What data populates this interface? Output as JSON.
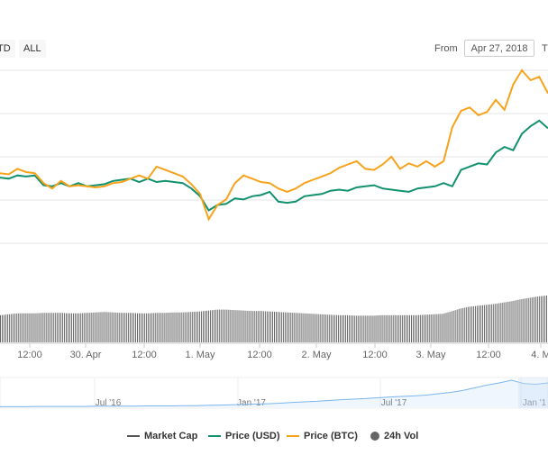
{
  "toolbar": {
    "range_buttons": [
      "TD",
      "ALL"
    ],
    "from_label": "From",
    "from_date": "Apr 27, 2018",
    "to_label": "T"
  },
  "colors": {
    "usd": "#12916f",
    "btc": "#f7a21b",
    "market_cap": "#555555",
    "volume": "#666666",
    "navigator": "#7cb5ec",
    "grid": "#e6e6e6"
  },
  "chart_data": {
    "type": "line",
    "x_ticks": [
      "12:00",
      "30. Apr",
      "12:00",
      "1. May",
      "12:00",
      "2. May",
      "12:00",
      "3. May",
      "12:00",
      "4. M"
    ],
    "series": [
      {
        "name": "Price (USD)",
        "values": [
          0.5,
          0.49,
          0.51,
          0.5,
          0.51,
          0.46,
          0.46,
          0.47,
          0.46,
          0.47,
          0.46,
          0.46,
          0.47,
          0.48,
          0.49,
          0.49,
          0.48,
          0.49,
          0.48,
          0.48,
          0.48,
          0.47,
          0.45,
          0.41,
          0.35,
          0.37,
          0.38,
          0.4,
          0.4,
          0.41,
          0.42,
          0.43,
          0.39,
          0.38,
          0.39,
          0.41,
          0.42,
          0.42,
          0.44,
          0.44,
          0.44,
          0.45,
          0.46,
          0.46,
          0.45,
          0.44,
          0.44,
          0.43,
          0.45,
          0.45,
          0.46,
          0.47,
          0.46,
          0.53,
          0.55,
          0.56,
          0.56,
          0.61,
          0.64,
          0.62,
          0.7,
          0.73,
          0.76,
          0.72
        ]
      },
      {
        "name": "Price (BTC)",
        "values": [
          0.52,
          0.51,
          0.54,
          0.52,
          0.52,
          0.47,
          0.45,
          0.48,
          0.46,
          0.46,
          0.46,
          0.45,
          0.46,
          0.47,
          0.48,
          0.49,
          0.51,
          0.49,
          0.55,
          0.53,
          0.52,
          0.5,
          0.47,
          0.42,
          0.31,
          0.37,
          0.4,
          0.47,
          0.51,
          0.49,
          0.48,
          0.47,
          0.45,
          0.43,
          0.45,
          0.47,
          0.49,
          0.5,
          0.52,
          0.54,
          0.56,
          0.57,
          0.54,
          0.53,
          0.56,
          0.59,
          0.54,
          0.56,
          0.55,
          0.57,
          0.55,
          0.57,
          0.73,
          0.8,
          0.82,
          0.78,
          0.8,
          0.85,
          0.81,
          0.92,
          0.99,
          0.94,
          0.96,
          0.88
        ]
      }
    ],
    "volume": [
      0.58,
      0.6,
      0.62,
      0.62,
      0.62,
      0.63,
      0.63,
      0.63,
      0.62,
      0.62,
      0.63,
      0.64,
      0.65,
      0.64,
      0.63,
      0.63,
      0.62,
      0.62,
      0.63,
      0.63,
      0.64,
      0.64,
      0.65,
      0.66,
      0.68,
      0.7,
      0.7,
      0.69,
      0.68,
      0.67,
      0.67,
      0.66,
      0.65,
      0.64,
      0.63,
      0.62,
      0.61,
      0.6,
      0.59,
      0.58,
      0.58,
      0.57,
      0.57,
      0.57,
      0.58,
      0.58,
      0.58,
      0.58,
      0.58,
      0.59,
      0.6,
      0.61,
      0.66,
      0.72,
      0.76,
      0.78,
      0.8,
      0.82,
      0.85,
      0.88,
      0.92,
      0.95,
      0.98,
      1.0
    ],
    "navigator_ticks": [
      "Jul '16",
      "Jan '17",
      "Jul '17",
      "Jan '1"
    ],
    "navigator": [
      0.02,
      0.02,
      0.02,
      0.03,
      0.03,
      0.03,
      0.03,
      0.03,
      0.04,
      0.04,
      0.04,
      0.04,
      0.05,
      0.05,
      0.05,
      0.06,
      0.06,
      0.07,
      0.08,
      0.09,
      0.1,
      0.12,
      0.13,
      0.15,
      0.18,
      0.2,
      0.22,
      0.25,
      0.28,
      0.3,
      0.32,
      0.35,
      0.38,
      0.4,
      0.42,
      0.45,
      0.5,
      0.55,
      0.62,
      0.72,
      0.82,
      0.9,
      1.0,
      0.88,
      0.85,
      0.9
    ],
    "legend": [
      {
        "label": "Market Cap",
        "marker": "line",
        "color": "#555555"
      },
      {
        "label": "Price (USD)",
        "marker": "line",
        "color": "#12916f"
      },
      {
        "label": "Price (BTC)",
        "marker": "line",
        "color": "#f7a21b"
      },
      {
        "label": "24h Vol",
        "marker": "dot",
        "color": "#666666"
      }
    ],
    "grid": true,
    "legend_position": "bottom"
  }
}
